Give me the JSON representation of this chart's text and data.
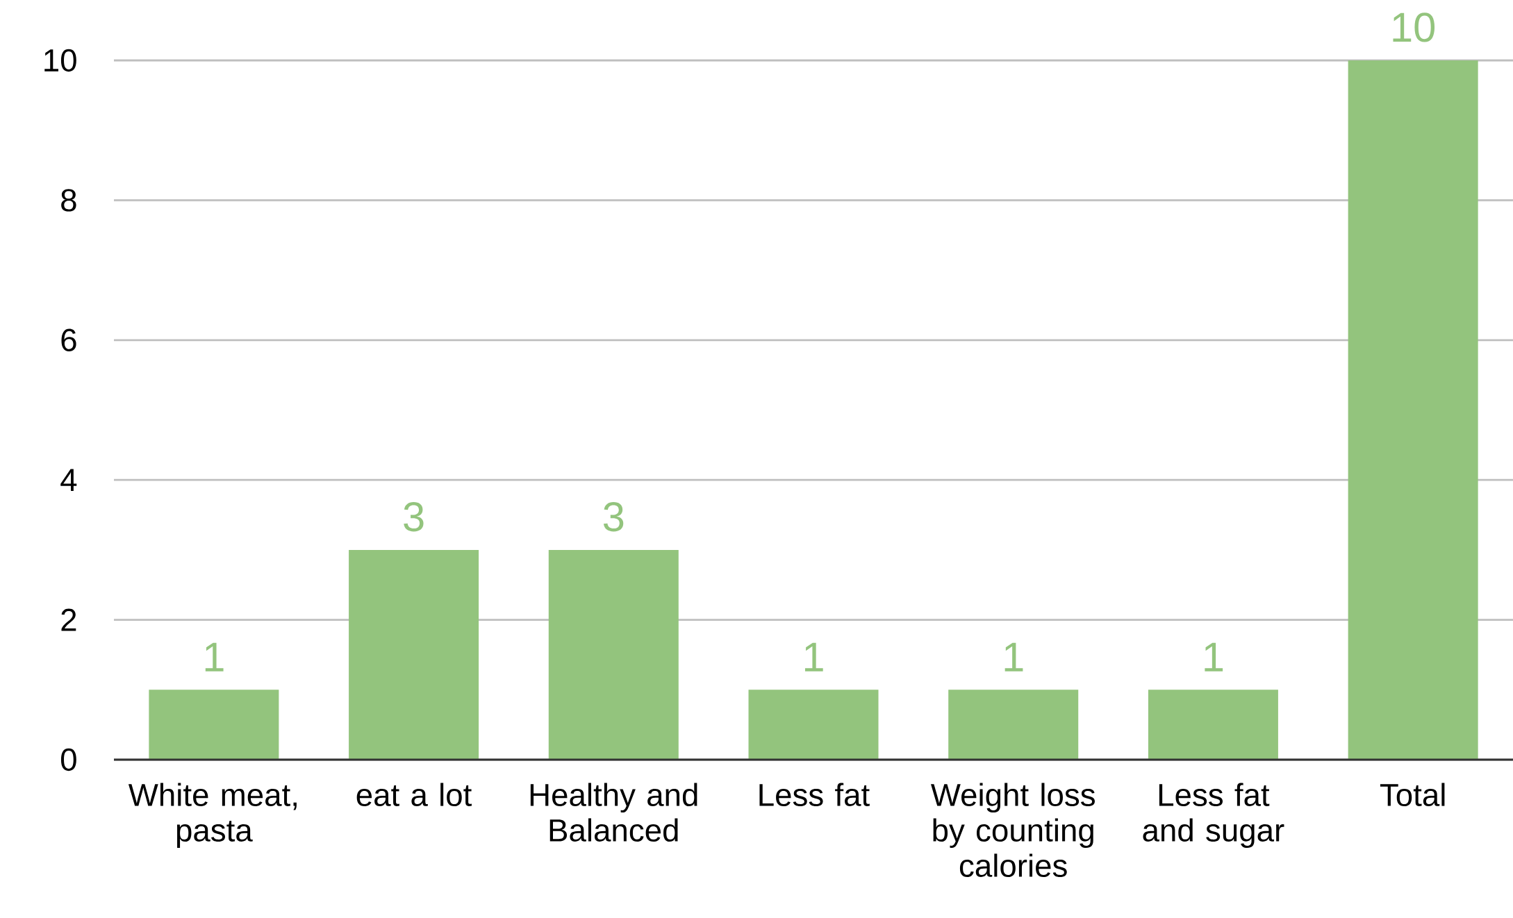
{
  "chart_data": {
    "type": "bar",
    "categories": [
      "White meat, pasta",
      "eat a lot",
      "Healthy and Balanced",
      "Less fat",
      "Weight loss by counting calories",
      "Less fat and sugar",
      "Total"
    ],
    "values": [
      1,
      3,
      3,
      1,
      1,
      1,
      10
    ],
    "color": "#93c47d",
    "ylim": [
      0,
      10
    ],
    "yticks": [
      0,
      2,
      4,
      6,
      8,
      10
    ],
    "grid": "y",
    "data_labels": true
  }
}
